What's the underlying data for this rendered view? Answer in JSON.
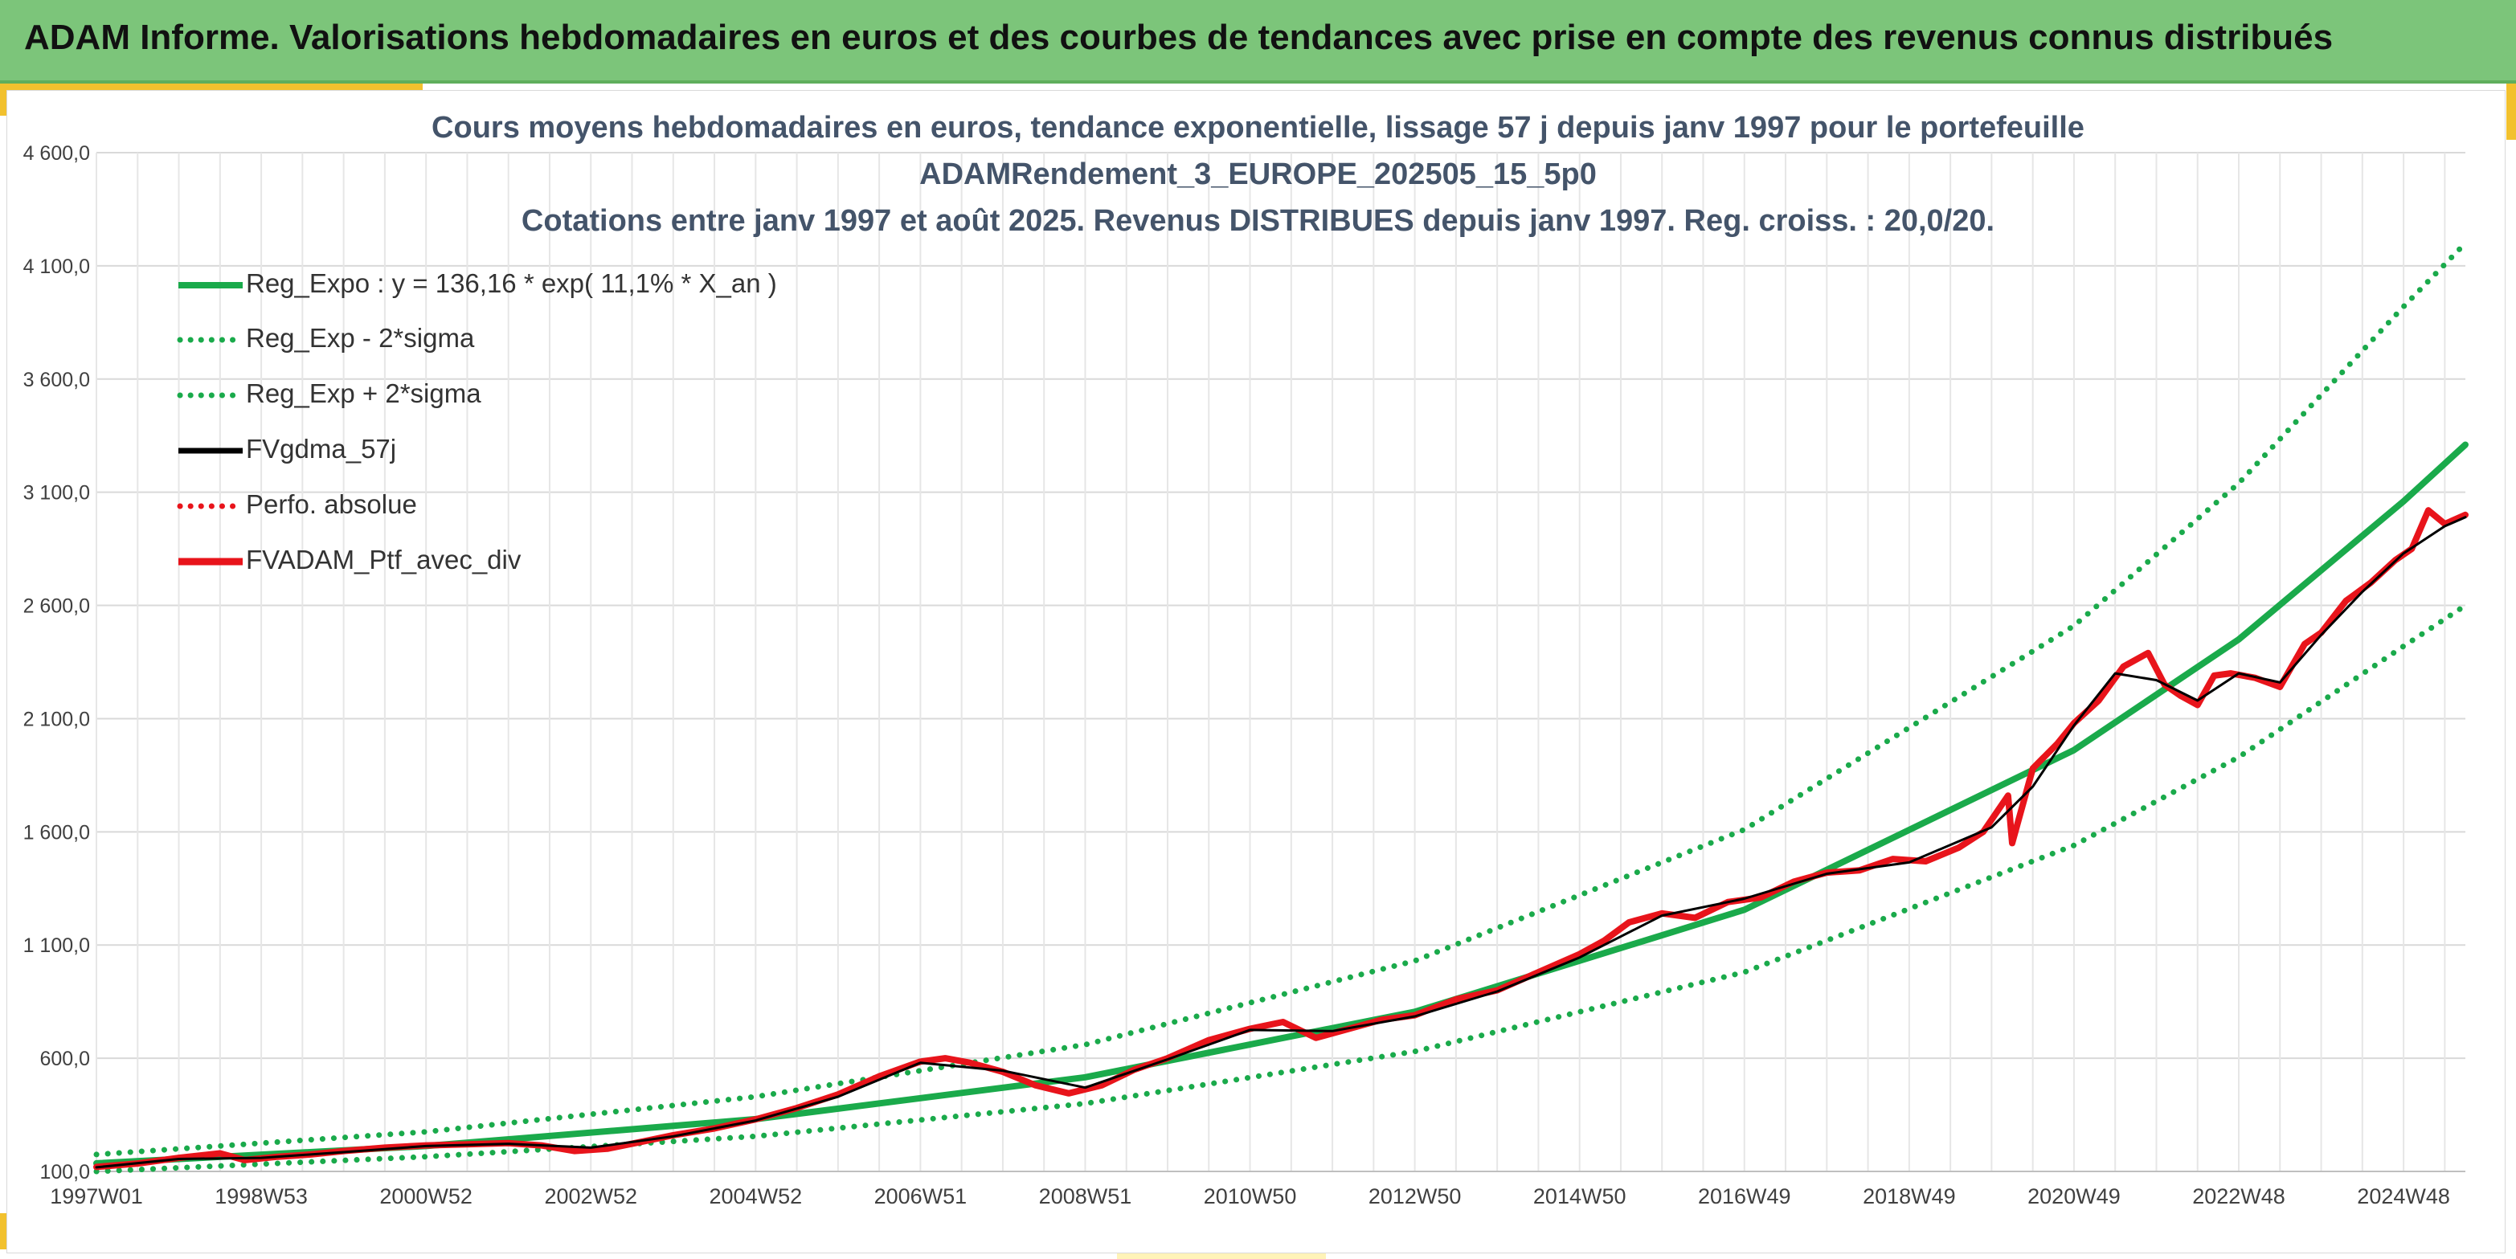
{
  "banner": {
    "title": "ADAM Informe. Valorisations hebdomadaires en euros et des courbes de tendances avec prise en compte des revenus connus distribués"
  },
  "colors": {
    "banner_bg": "#7cc57a",
    "accent": "#f2c12e",
    "trend_green": "#1aaa4b",
    "portfolio_red": "#e8141b",
    "smoothed_black": "#000000",
    "title_text": "#44546a"
  },
  "chart_data": {
    "type": "line",
    "title_lines": [
      "Cours moyens hebdomadaires en euros, tendance exponentielle, lissage 57 j depuis janv 1997 pour le portefeuille",
      "ADAMRendement_3_EUROPE_202505_15_5p0",
      "Cotations entre janv 1997 et août 2025. Revenus DISTRIBUES depuis janv 1997. Reg. croiss. : 20,0/20."
    ],
    "y_tick_labels": [
      "100,0",
      "600,0",
      "1 100,0",
      "1 600,0",
      "2 100,0",
      "2 600,0",
      "3 100,0",
      "3 600,0",
      "4 100,0",
      "4 600,0"
    ],
    "y_ticks": [
      100,
      600,
      1100,
      1600,
      2100,
      2600,
      3100,
      3600,
      4100,
      4600
    ],
    "ylim": [
      100,
      4600
    ],
    "x_tick_labels": [
      "1997W01",
      "1998W53",
      "2000W52",
      "2002W52",
      "2004W52",
      "2006W51",
      "2008W51",
      "2010W50",
      "2012W50",
      "2014W50",
      "2016W49",
      "2018W49",
      "2020W49",
      "2022W48",
      "2024W48"
    ],
    "x_tick_years": [
      1997.0,
      1999.0,
      2001.0,
      2003.0,
      2005.0,
      2007.0,
      2009.0,
      2011.0,
      2013.0,
      2015.0,
      2017.0,
      2019.0,
      2021.0,
      2023.0,
      2025.0
    ],
    "xlim": [
      1997.0,
      2025.75
    ],
    "grid": true,
    "legend_position": "top-left",
    "legend": [
      {
        "label": "Reg_Expo : y = 136,16 * exp( 11,1% *  X_an )",
        "style": "solid-thick",
        "color": "#1aaa4b"
      },
      {
        "label": "Reg_Exp - 2*sigma",
        "style": "dotted",
        "color": "#1aaa4b"
      },
      {
        "label": "Reg_Exp + 2*sigma",
        "style": "dotted",
        "color": "#1aaa4b"
      },
      {
        "label": "FVgdma_57j",
        "style": "solid",
        "color": "#000000"
      },
      {
        "label": "Perfo. absolue",
        "style": "dotted",
        "color": "#e8141b"
      },
      {
        "label": "FVADAM_Ptf_avec_div",
        "style": "solid-thick",
        "color": "#e8141b"
      }
    ],
    "series": [
      {
        "name": "Reg_Expo : y = 136,16 * exp( 11,1% *  X_an )",
        "x": [
          1997.0,
          2001.0,
          2005.0,
          2009.0,
          2013.0,
          2017.0,
          2021.0,
          2023.0,
          2025.0,
          2025.75
        ],
        "values": [
          136,
          212,
          331,
          516,
          805,
          1256,
          1961,
          2450,
          3060,
          3310
        ]
      },
      {
        "name": "Reg_Exp - 2*sigma",
        "x": [
          1997.0,
          2001.0,
          2005.0,
          2009.0,
          2013.0,
          2017.0,
          2021.0,
          2023.0,
          2025.0,
          2025.75
        ],
        "values": [
          100,
          165,
          255,
          400,
          630,
          980,
          1540,
          1930,
          2420,
          2600
        ]
      },
      {
        "name": "Reg_Exp + 2*sigma",
        "x": [
          1997.0,
          2001.0,
          2005.0,
          2009.0,
          2013.0,
          2017.0,
          2021.0,
          2023.0,
          2025.0,
          2025.75
        ],
        "values": [
          175,
          275,
          430,
          660,
          1030,
          1610,
          2510,
          3140,
          3920,
          4200
        ]
      },
      {
        "name": "FVADAM_Ptf_avec_div",
        "x": [
          1997.0,
          1997.5,
          1998.0,
          1998.5,
          1998.8,
          1999.2,
          1999.6,
          2000.0,
          2000.5,
          2001.0,
          2001.5,
          2002.0,
          2002.4,
          2002.8,
          2003.2,
          2003.6,
          2004.0,
          2004.5,
          2005.0,
          2005.5,
          2006.0,
          2006.5,
          2007.0,
          2007.3,
          2007.6,
          2008.0,
          2008.4,
          2008.8,
          2009.2,
          2009.6,
          2010.0,
          2010.5,
          2011.0,
          2011.4,
          2011.8,
          2012.2,
          2012.6,
          2013.0,
          2013.5,
          2014.0,
          2014.5,
          2015.0,
          2015.3,
          2015.6,
          2016.0,
          2016.4,
          2016.8,
          2017.2,
          2017.6,
          2018.0,
          2018.4,
          2018.8,
          2019.2,
          2019.6,
          2019.9,
          2020.2,
          2020.25,
          2020.5,
          2020.8,
          2021.0,
          2021.3,
          2021.6,
          2021.9,
          2022.1,
          2022.3,
          2022.5,
          2022.7,
          2022.9,
          2023.2,
          2023.5,
          2023.8,
          2024.0,
          2024.3,
          2024.6,
          2024.9,
          2025.1,
          2025.3,
          2025.5,
          2025.75
        ],
        "values": [
          120,
          135,
          160,
          180,
          150,
          165,
          175,
          190,
          205,
          215,
          220,
          225,
          215,
          190,
          200,
          230,
          260,
          290,
          330,
          380,
          440,
          520,
          585,
          600,
          580,
          540,
          480,
          445,
          480,
          550,
          600,
          680,
          730,
          760,
          690,
          730,
          770,
          790,
          860,
          900,
          980,
          1060,
          1120,
          1200,
          1240,
          1220,
          1290,
          1310,
          1380,
          1420,
          1430,
          1480,
          1470,
          1530,
          1600,
          1760,
          1550,
          1880,
          1990,
          2080,
          2180,
          2330,
          2390,
          2250,
          2200,
          2160,
          2290,
          2300,
          2280,
          2240,
          2430,
          2480,
          2620,
          2700,
          2800,
          2850,
          3020,
          2960,
          3000
        ]
      },
      {
        "name": "FVgdma_57j",
        "x": [
          1997.0,
          1998.0,
          1999.0,
          2000.0,
          2001.0,
          2002.0,
          2003.0,
          2004.0,
          2005.0,
          2006.0,
          2007.0,
          2008.0,
          2009.0,
          2010.0,
          2011.0,
          2012.0,
          2013.0,
          2014.0,
          2015.0,
          2016.0,
          2017.0,
          2018.0,
          2019.0,
          2020.0,
          2020.5,
          2021.0,
          2021.5,
          2022.0,
          2022.5,
          2023.0,
          2023.5,
          2024.0,
          2024.5,
          2025.0,
          2025.5,
          2025.75
        ],
        "values": [
          118,
          155,
          160,
          185,
          212,
          222,
          205,
          255,
          325,
          430,
          580,
          545,
          470,
          595,
          725,
          720,
          785,
          895,
          1045,
          1230,
          1305,
          1415,
          1465,
          1620,
          1800,
          2070,
          2300,
          2270,
          2180,
          2300,
          2260,
          2470,
          2660,
          2830,
          2950,
          2990
        ]
      }
    ]
  }
}
